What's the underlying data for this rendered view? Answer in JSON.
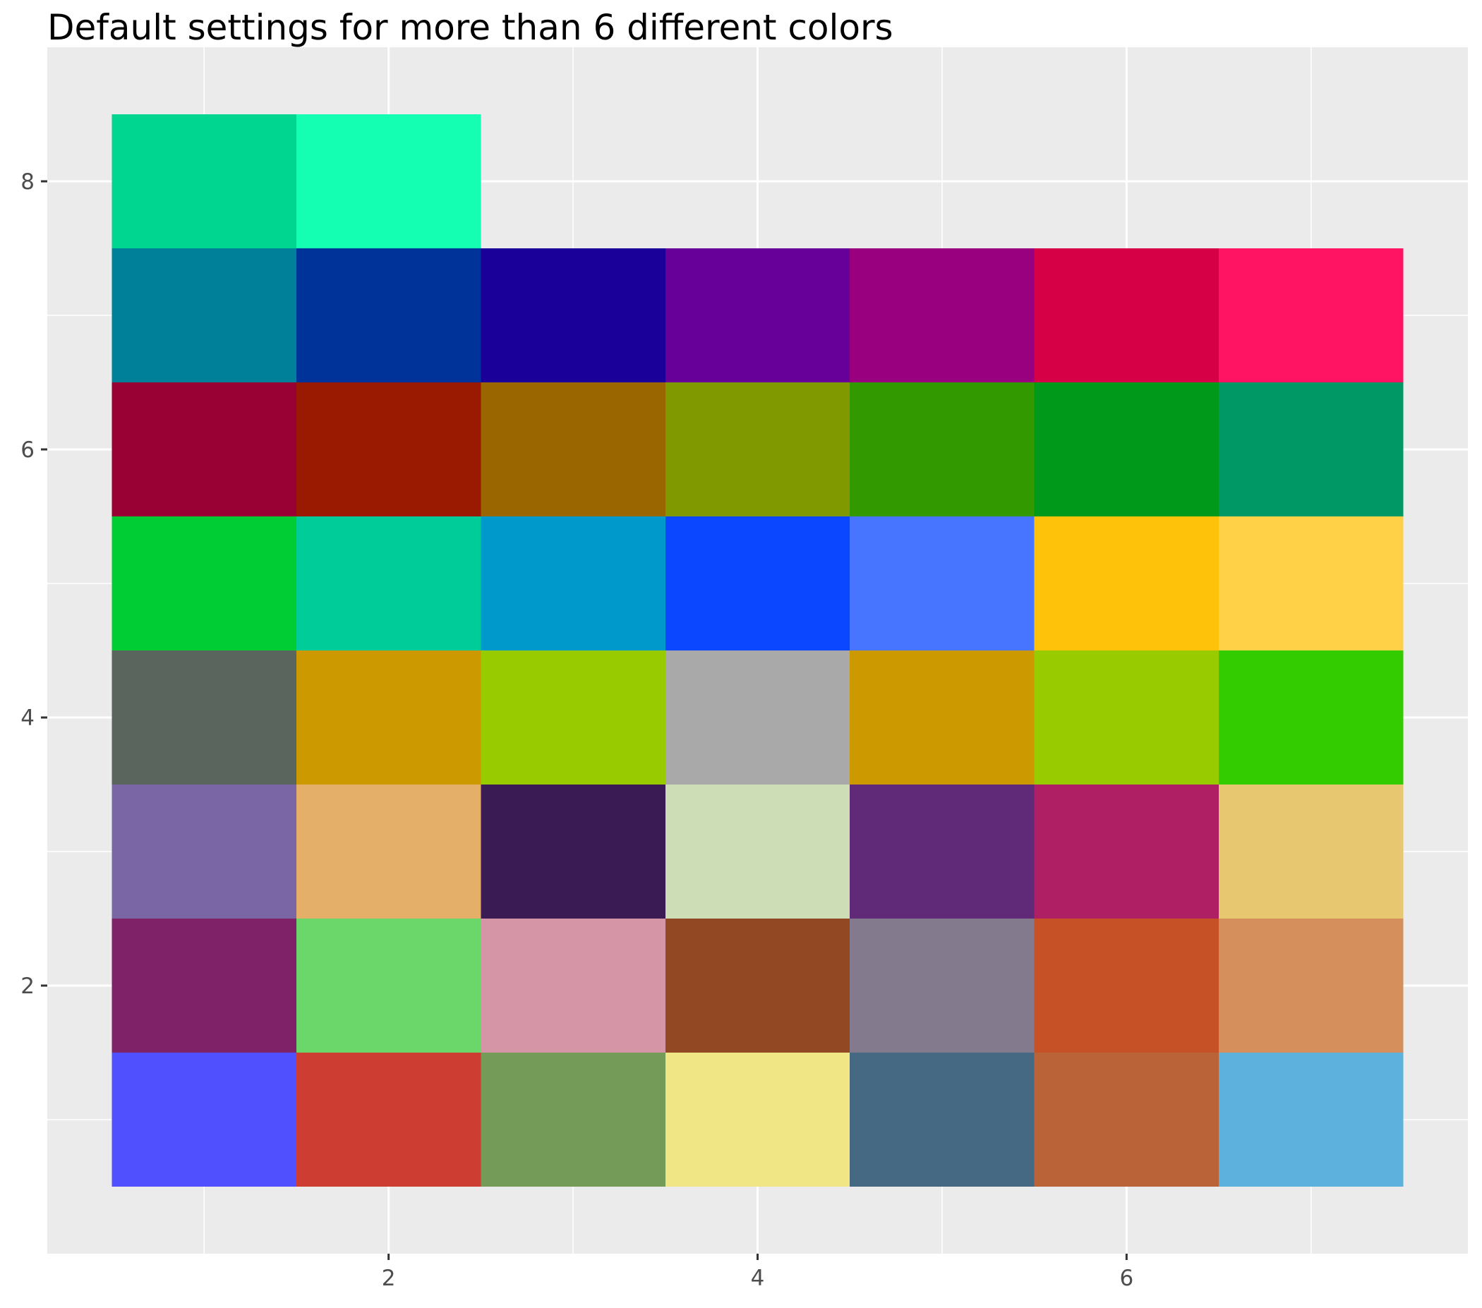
{
  "chart_data": {
    "type": "heatmap",
    "title": "Default settings for more than 6 different colors",
    "xlabel": "",
    "ylabel": "",
    "xlim": [
      0.5,
      7.5
    ],
    "ylim": [
      0.5,
      8.5
    ],
    "x_ticks": [
      2,
      4,
      6
    ],
    "y_ticks": [
      2,
      4,
      6,
      8
    ],
    "grid": true,
    "legend": "none",
    "colors": {
      "panel_background": "#EBEBEB",
      "grid_line": "#FFFFFF",
      "tick_text": "#4D4D4D",
      "tick_mark": "#333333"
    },
    "tiles": [
      {
        "x": 1,
        "y": 1,
        "color": "#5050FF"
      },
      {
        "x": 2,
        "y": 1,
        "color": "#CE3D32"
      },
      {
        "x": 3,
        "y": 1,
        "color": "#749B58"
      },
      {
        "x": 4,
        "y": 1,
        "color": "#F0E685"
      },
      {
        "x": 5,
        "y": 1,
        "color": "#466983"
      },
      {
        "x": 6,
        "y": 1,
        "color": "#BA6338"
      },
      {
        "x": 7,
        "y": 1,
        "color": "#5DB1DD"
      },
      {
        "x": 1,
        "y": 2,
        "color": "#802268"
      },
      {
        "x": 2,
        "y": 2,
        "color": "#6BD76B"
      },
      {
        "x": 3,
        "y": 2,
        "color": "#D595A7"
      },
      {
        "x": 4,
        "y": 2,
        "color": "#924822"
      },
      {
        "x": 5,
        "y": 2,
        "color": "#837B8D"
      },
      {
        "x": 6,
        "y": 2,
        "color": "#C75127"
      },
      {
        "x": 7,
        "y": 2,
        "color": "#D58F5C"
      },
      {
        "x": 1,
        "y": 3,
        "color": "#7A65A5"
      },
      {
        "x": 2,
        "y": 3,
        "color": "#E4AF69"
      },
      {
        "x": 3,
        "y": 3,
        "color": "#3B1B53"
      },
      {
        "x": 4,
        "y": 3,
        "color": "#CDDEB7"
      },
      {
        "x": 5,
        "y": 3,
        "color": "#612A79"
      },
      {
        "x": 6,
        "y": 3,
        "color": "#AE1F63"
      },
      {
        "x": 7,
        "y": 3,
        "color": "#E7C76F"
      },
      {
        "x": 1,
        "y": 4,
        "color": "#5A655E"
      },
      {
        "x": 2,
        "y": 4,
        "color": "#CC9900"
      },
      {
        "x": 3,
        "y": 4,
        "color": "#99CC00"
      },
      {
        "x": 4,
        "y": 4,
        "color": "#A9A9A9"
      },
      {
        "x": 5,
        "y": 4,
        "color": "#CC9900"
      },
      {
        "x": 6,
        "y": 4,
        "color": "#99CC00"
      },
      {
        "x": 7,
        "y": 4,
        "color": "#33CC00"
      },
      {
        "x": 1,
        "y": 5,
        "color": "#00CC33"
      },
      {
        "x": 2,
        "y": 5,
        "color": "#00CC99"
      },
      {
        "x": 3,
        "y": 5,
        "color": "#0099CC"
      },
      {
        "x": 4,
        "y": 5,
        "color": "#0A47FF"
      },
      {
        "x": 5,
        "y": 5,
        "color": "#4775FF"
      },
      {
        "x": 6,
        "y": 5,
        "color": "#FFC20A"
      },
      {
        "x": 7,
        "y": 5,
        "color": "#FFD147"
      },
      {
        "x": 1,
        "y": 6,
        "color": "#990033"
      },
      {
        "x": 2,
        "y": 6,
        "color": "#991A00"
      },
      {
        "x": 3,
        "y": 6,
        "color": "#996600"
      },
      {
        "x": 4,
        "y": 6,
        "color": "#809900"
      },
      {
        "x": 5,
        "y": 6,
        "color": "#339900"
      },
      {
        "x": 6,
        "y": 6,
        "color": "#00991A"
      },
      {
        "x": 7,
        "y": 6,
        "color": "#009966"
      },
      {
        "x": 1,
        "y": 7,
        "color": "#008099"
      },
      {
        "x": 2,
        "y": 7,
        "color": "#003399"
      },
      {
        "x": 3,
        "y": 7,
        "color": "#1A0099"
      },
      {
        "x": 4,
        "y": 7,
        "color": "#660099"
      },
      {
        "x": 5,
        "y": 7,
        "color": "#990080"
      },
      {
        "x": 6,
        "y": 7,
        "color": "#D60047"
      },
      {
        "x": 7,
        "y": 7,
        "color": "#FF1463"
      },
      {
        "x": 1,
        "y": 8,
        "color": "#00D68F"
      },
      {
        "x": 2,
        "y": 8,
        "color": "#14FFB1"
      }
    ]
  }
}
